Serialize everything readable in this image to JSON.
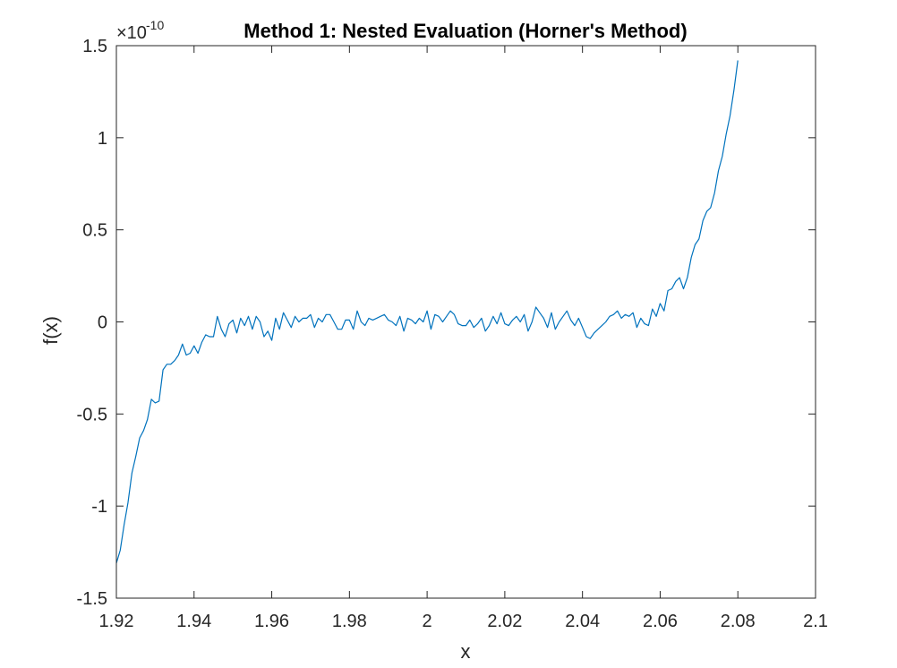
{
  "chart_data": {
    "type": "line",
    "title": "Method 1: Nested Evaluation (Horner's Method)",
    "xlabel": "x",
    "ylabel": "f(x)",
    "y_exponent_base": "×10",
    "y_exponent_power": "-10",
    "xlim": [
      1.92,
      2.1
    ],
    "ylim": [
      -1.5,
      1.5
    ],
    "x_ticks": [
      1.92,
      1.94,
      1.96,
      1.98,
      2.0,
      2.02,
      2.04,
      2.06,
      2.08,
      2.1
    ],
    "x_tick_labels": [
      "1.92",
      "1.94",
      "1.96",
      "1.98",
      "2",
      "2.02",
      "2.04",
      "2.06",
      "2.08",
      "2.1"
    ],
    "y_ticks": [
      -1.5,
      -1,
      -0.5,
      0,
      0.5,
      1,
      1.5
    ],
    "y_tick_labels": [
      "-1.5",
      "-1",
      "-0.5",
      "0",
      "0.5",
      "1",
      "1.5"
    ],
    "grid": false,
    "box": true,
    "series": [
      {
        "color": "#0072BD",
        "x": [
          1.92,
          1.921,
          1.922,
          1.923,
          1.924,
          1.925,
          1.926,
          1.927,
          1.928,
          1.929,
          1.93,
          1.931,
          1.932,
          1.933,
          1.934,
          1.935,
          1.936,
          1.937,
          1.938,
          1.939,
          1.94,
          1.941,
          1.942,
          1.943,
          1.944,
          1.945,
          1.946,
          1.947,
          1.948,
          1.949,
          1.95,
          1.951,
          1.952,
          1.953,
          1.954,
          1.955,
          1.956,
          1.957,
          1.958,
          1.959,
          1.96,
          1.961,
          1.962,
          1.963,
          1.964,
          1.965,
          1.966,
          1.967,
          1.968,
          1.969,
          1.97,
          1.971,
          1.972,
          1.973,
          1.974,
          1.975,
          1.976,
          1.977,
          1.978,
          1.979,
          1.98,
          1.981,
          1.982,
          1.983,
          1.984,
          1.985,
          1.986,
          1.987,
          1.988,
          1.989,
          1.99,
          1.991,
          1.992,
          1.993,
          1.994,
          1.995,
          1.996,
          1.997,
          1.998,
          1.999,
          2.0,
          2.001,
          2.002,
          2.003,
          2.004,
          2.005,
          2.006,
          2.007,
          2.008,
          2.009,
          2.01,
          2.011,
          2.012,
          2.013,
          2.014,
          2.015,
          2.016,
          2.017,
          2.018,
          2.019,
          2.02,
          2.021,
          2.022,
          2.023,
          2.024,
          2.025,
          2.026,
          2.027,
          2.028,
          2.029,
          2.03,
          2.031,
          2.032,
          2.033,
          2.034,
          2.035,
          2.036,
          2.037,
          2.038,
          2.039,
          2.04,
          2.041,
          2.042,
          2.043,
          2.044,
          2.045,
          2.046,
          2.047,
          2.048,
          2.049,
          2.05,
          2.051,
          2.052,
          2.053,
          2.054,
          2.055,
          2.056,
          2.057,
          2.058,
          2.059,
          2.06,
          2.061,
          2.062,
          2.063,
          2.064,
          2.065,
          2.066,
          2.067,
          2.068,
          2.069,
          2.07,
          2.071,
          2.072,
          2.073,
          2.074,
          2.075,
          2.076,
          2.077,
          2.078,
          2.079,
          2.08
        ],
        "y": [
          -1.31,
          -1.24,
          -1.1,
          -0.98,
          -0.82,
          -0.73,
          -0.63,
          -0.59,
          -0.53,
          -0.42,
          -0.44,
          -0.43,
          -0.26,
          -0.23,
          -0.23,
          -0.21,
          -0.18,
          -0.12,
          -0.18,
          -0.17,
          -0.13,
          -0.17,
          -0.11,
          -0.07,
          -0.08,
          -0.08,
          0.03,
          -0.04,
          -0.08,
          -0.01,
          0.01,
          -0.06,
          0.02,
          -0.02,
          0.03,
          -0.04,
          0.03,
          0.0,
          -0.08,
          -0.05,
          -0.1,
          0.02,
          -0.04,
          0.05,
          0.01,
          -0.03,
          0.03,
          0.0,
          0.02,
          0.02,
          0.04,
          -0.03,
          0.02,
          0.0,
          0.04,
          0.04,
          0.0,
          -0.04,
          -0.04,
          0.01,
          0.01,
          -0.04,
          0.06,
          0.0,
          -0.02,
          0.02,
          0.01,
          0.02,
          0.03,
          0.04,
          0.01,
          0.0,
          -0.02,
          0.03,
          -0.05,
          0.02,
          0.01,
          -0.01,
          0.02,
          0.0,
          0.06,
          -0.04,
          0.04,
          0.03,
          0.0,
          0.03,
          0.06,
          0.04,
          -0.01,
          -0.02,
          -0.02,
          0.01,
          -0.03,
          -0.01,
          0.02,
          -0.05,
          -0.02,
          0.03,
          -0.01,
          0.05,
          -0.01,
          -0.02,
          0.01,
          0.03,
          0.0,
          0.04,
          -0.05,
          0.0,
          0.08,
          0.05,
          0.02,
          -0.03,
          0.05,
          -0.04,
          0.0,
          0.03,
          0.06,
          0.01,
          -0.02,
          0.02,
          -0.03,
          -0.08,
          -0.09,
          -0.06,
          -0.04,
          -0.02,
          0.0,
          0.03,
          0.04,
          0.06,
          0.02,
          0.04,
          0.03,
          0.05,
          -0.03,
          0.02,
          -0.01,
          -0.02,
          0.07,
          0.03,
          0.1,
          0.06,
          0.17,
          0.18,
          0.22,
          0.24,
          0.18,
          0.24,
          0.35,
          0.42,
          0.45,
          0.55,
          0.6,
          0.62,
          0.7,
          0.82,
          0.9,
          1.02,
          1.12,
          1.26,
          1.42
        ]
      }
    ]
  }
}
